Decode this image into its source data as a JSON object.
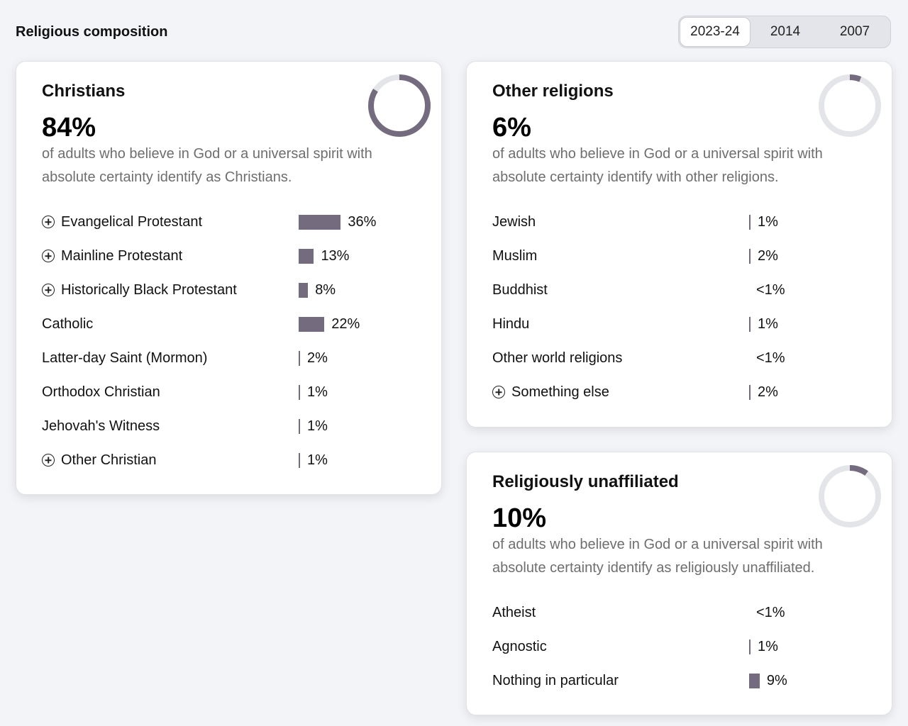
{
  "page_title": "Religious composition",
  "year_tabs": [
    {
      "label": "2023-24",
      "active": true
    },
    {
      "label": "2014",
      "active": false
    },
    {
      "label": "2007",
      "active": false
    }
  ],
  "colors": {
    "bar": "#756b7e",
    "donut_track": "#e3e5e8"
  },
  "christians": {
    "title": "Christians",
    "pct_label": "84%",
    "share": 0.84,
    "description": "of adults who believe in God or a universal spirit with absolute certainty identify as Christians.",
    "rows": [
      {
        "label": "Evangelical Protestant",
        "value": 36,
        "value_label": "36%",
        "expandable": true
      },
      {
        "label": "Mainline Protestant",
        "value": 13,
        "value_label": "13%",
        "expandable": true
      },
      {
        "label": "Historically Black Protestant",
        "value": 8,
        "value_label": "8%",
        "expandable": true
      },
      {
        "label": "Catholic",
        "value": 22,
        "value_label": "22%",
        "expandable": false
      },
      {
        "label": "Latter-day Saint (Mormon)",
        "value": 2,
        "value_label": "2%",
        "expandable": false
      },
      {
        "label": "Orthodox Christian",
        "value": 1,
        "value_label": "1%",
        "expandable": false
      },
      {
        "label": "Jehovah's Witness",
        "value": 1,
        "value_label": "1%",
        "expandable": false
      },
      {
        "label": "Other Christian",
        "value": 1,
        "value_label": "1%",
        "expandable": true
      }
    ]
  },
  "other_religions": {
    "title": "Other religions",
    "pct_label": "6%",
    "share": 0.06,
    "description": "of adults who believe in God or a universal spirit with absolute certainty identify with other religions.",
    "rows": [
      {
        "label": "Jewish",
        "value": 1,
        "value_label": "1%",
        "expandable": false
      },
      {
        "label": "Muslim",
        "value": 2,
        "value_label": "2%",
        "expandable": false
      },
      {
        "label": "Buddhist",
        "value": 0,
        "value_label": "<1%",
        "expandable": false
      },
      {
        "label": "Hindu",
        "value": 1,
        "value_label": "1%",
        "expandable": false
      },
      {
        "label": "Other world religions",
        "value": 0,
        "value_label": "<1%",
        "expandable": false
      },
      {
        "label": "Something else",
        "value": 2,
        "value_label": "2%",
        "expandable": true
      }
    ]
  },
  "unaffiliated": {
    "title": "Religiously unaffiliated",
    "pct_label": "10%",
    "share": 0.1,
    "description": "of adults who believe in God or a universal spirit with absolute certainty identify as religiously unaffiliated.",
    "rows": [
      {
        "label": "Atheist",
        "value": 0,
        "value_label": "<1%",
        "expandable": false
      },
      {
        "label": "Agnostic",
        "value": 1,
        "value_label": "1%",
        "expandable": false
      },
      {
        "label": "Nothing in particular",
        "value": 9,
        "value_label": "9%",
        "expandable": false
      }
    ]
  }
}
